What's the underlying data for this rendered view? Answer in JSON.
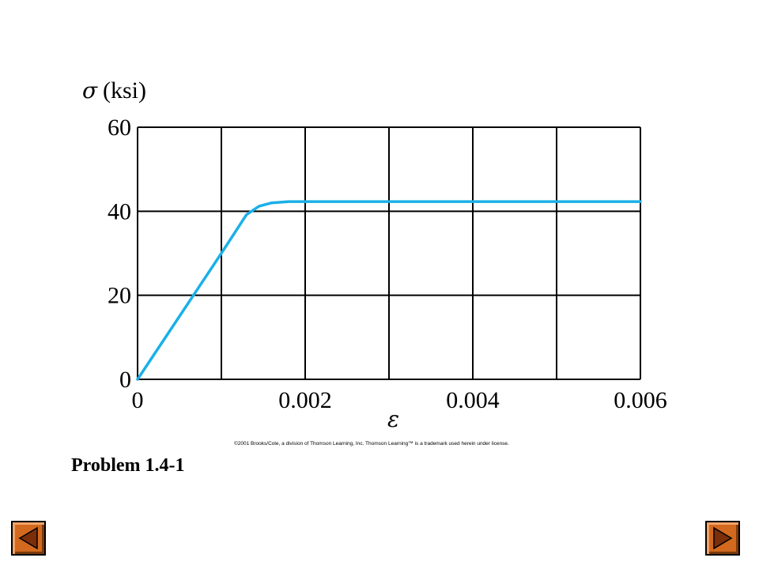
{
  "chart_data": {
    "type": "line",
    "ylabel_symbol": "σ",
    "ylabel_unit": "(ksi)",
    "xlabel": "ε",
    "xlim": [
      0,
      0.006
    ],
    "ylim": [
      0,
      60
    ],
    "grid": true,
    "x_ticks": [
      "0",
      "0.002",
      "0.004",
      "0.006"
    ],
    "x_tick_values": [
      0,
      0.002,
      0.004,
      0.006
    ],
    "x_grid_values": [
      0,
      0.001,
      0.002,
      0.003,
      0.004,
      0.005,
      0.006
    ],
    "y_ticks": [
      "0",
      "20",
      "40",
      "60"
    ],
    "y_tick_values": [
      0,
      20,
      40,
      60
    ],
    "series": [
      {
        "color": "#1ab0e8",
        "x": [
          0,
          0.0005,
          0.001,
          0.0013,
          0.00145,
          0.0016,
          0.0018,
          0.002,
          0.003,
          0.004,
          0.005,
          0.006
        ],
        "y": [
          0,
          15,
          30,
          39.2,
          41.2,
          42.0,
          42.3,
          42.3,
          42.3,
          42.3,
          42.3,
          42.3
        ]
      }
    ]
  },
  "copyright": "©2001 Brooks/Cole, a division of Thomson Learning, Inc.  Thomson Learning™ is a trademark used herein under license.",
  "problem_title": "Problem 1.4-1",
  "nav": {
    "prev_icon": "triangle-left-icon",
    "next_icon": "triangle-right-icon",
    "button_color": "#d2691e",
    "icon_color": "#7a2e0a"
  }
}
